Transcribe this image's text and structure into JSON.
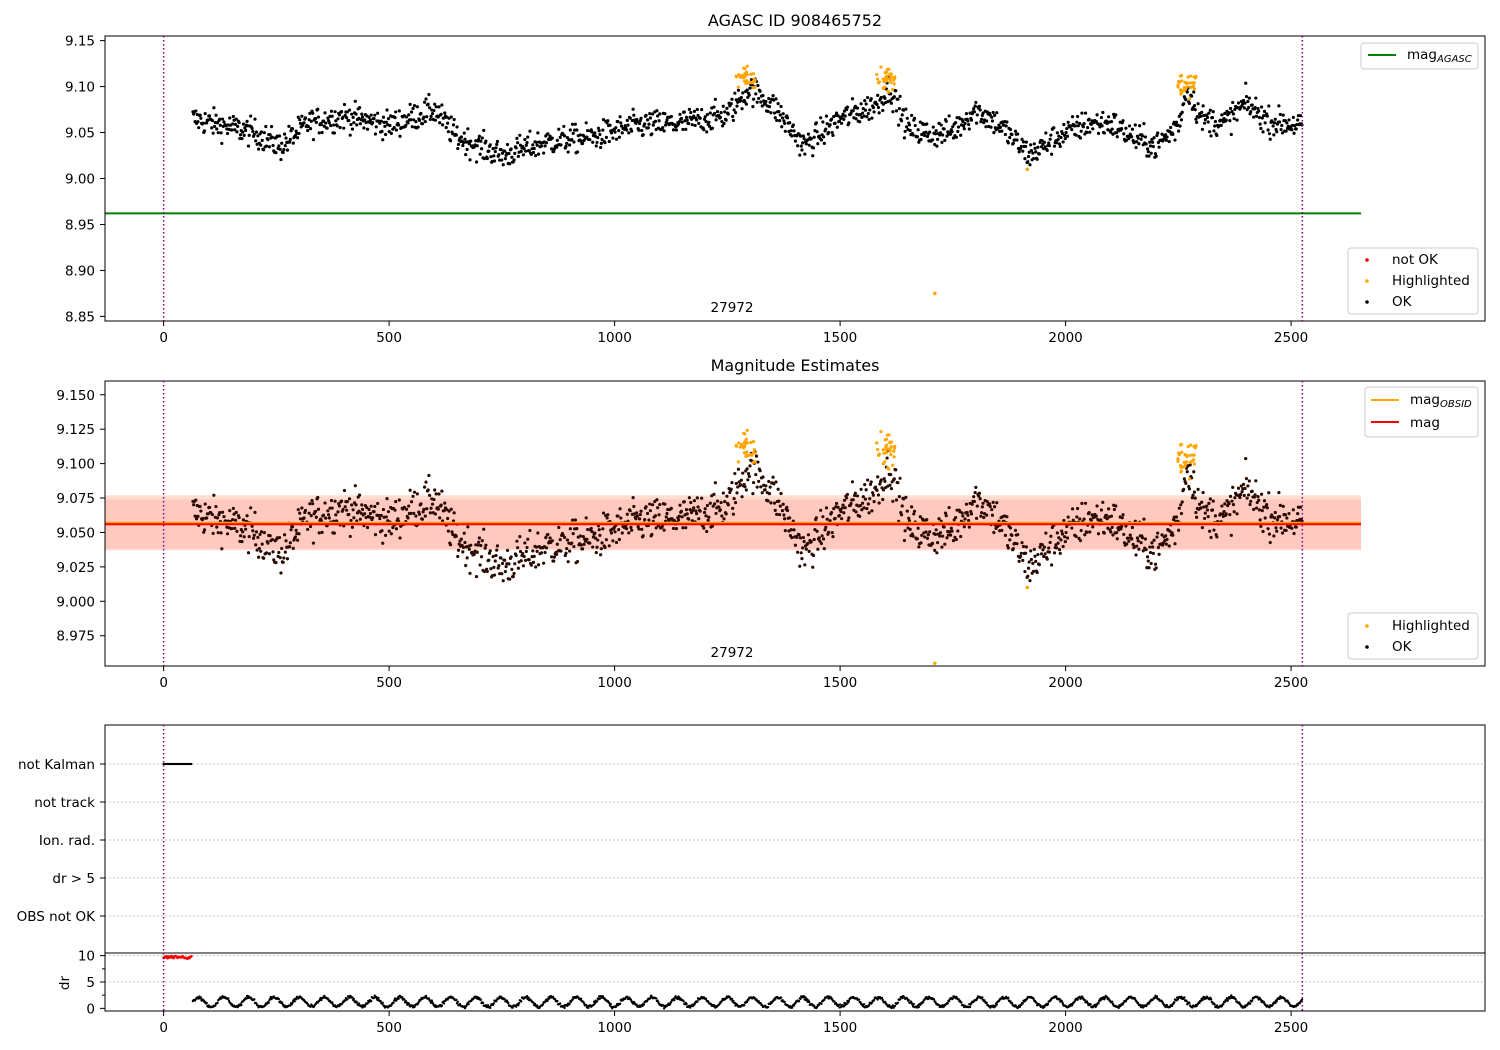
{
  "chart_data": [
    {
      "type": "scatter",
      "title": "AGASC ID 908465752",
      "xlim": [
        -130,
        2930
      ],
      "ylim": [
        8.845,
        9.155
      ],
      "xticks": [
        0,
        500,
        1000,
        1500,
        2000,
        2500
      ],
      "yticks": [
        8.85,
        8.9,
        8.95,
        9.0,
        9.05,
        9.1,
        9.15
      ],
      "ytick_labels": [
        "8.85",
        "8.90",
        "8.95",
        "9.00",
        "9.05",
        "9.10",
        "9.15"
      ],
      "annotation": {
        "text": "27972",
        "x": 1260
      },
      "vlines": [
        0,
        2525
      ],
      "hline": {
        "name": "mag_AGASC",
        "y": 8.962,
        "x_range": [
          -130,
          2655
        ],
        "color": "#008000"
      },
      "upper_legend": [
        {
          "label": "mag",
          "sub": "AGASC",
          "color": "#008000"
        }
      ],
      "lower_legend": [
        {
          "label": "not OK",
          "color": "#ff0000"
        },
        {
          "label": "Highlighted",
          "color": "#ffa500"
        },
        {
          "label": "OK",
          "color": "#000000"
        }
      ],
      "series": {
        "ok_x_range": [
          65,
          2525
        ],
        "ok_profile": [
          [
            65,
            9.065
          ],
          [
            200,
            9.05
          ],
          [
            260,
            9.035
          ],
          [
            320,
            9.06
          ],
          [
            400,
            9.068
          ],
          [
            500,
            9.058
          ],
          [
            600,
            9.075
          ],
          [
            650,
            9.045
          ],
          [
            750,
            9.025
          ],
          [
            850,
            9.04
          ],
          [
            950,
            9.045
          ],
          [
            1050,
            9.058
          ],
          [
            1150,
            9.06
          ],
          [
            1250,
            9.07
          ],
          [
            1300,
            9.098
          ],
          [
            1350,
            9.08
          ],
          [
            1420,
            9.035
          ],
          [
            1500,
            9.065
          ],
          [
            1580,
            9.08
          ],
          [
            1610,
            9.098
          ],
          [
            1650,
            9.055
          ],
          [
            1700,
            9.048
          ],
          [
            1750,
            9.052
          ],
          [
            1800,
            9.075
          ],
          [
            1850,
            9.06
          ],
          [
            1920,
            9.025
          ],
          [
            1980,
            9.045
          ],
          [
            2050,
            9.06
          ],
          [
            2100,
            9.06
          ],
          [
            2150,
            9.045
          ],
          [
            2200,
            9.035
          ],
          [
            2250,
            9.058
          ],
          [
            2270,
            9.1
          ],
          [
            2300,
            9.065
          ],
          [
            2350,
            9.06
          ],
          [
            2400,
            9.082
          ],
          [
            2450,
            9.062
          ],
          [
            2525,
            9.058
          ]
        ],
        "highlighted_clusters": [
          [
            1290,
            9.11
          ],
          [
            1600,
            9.108
          ],
          [
            2270,
            9.105
          ]
        ],
        "outliers": [
          {
            "x": 1710,
            "y": 8.875,
            "color": "#ffa500"
          },
          {
            "x": 1915,
            "y": 9.01,
            "color": "#ffa500"
          }
        ]
      }
    },
    {
      "type": "scatter",
      "title": "Magnitude Estimates",
      "xlim": [
        -130,
        2930
      ],
      "ylim": [
        8.953,
        9.16
      ],
      "xticks": [
        0,
        500,
        1000,
        1500,
        2000,
        2500
      ],
      "yticks": [
        8.975,
        9.0,
        9.025,
        9.05,
        9.075,
        9.1,
        9.125,
        9.15
      ],
      "ytick_labels": [
        "8.975",
        "9.000",
        "9.025",
        "9.050",
        "9.075",
        "9.100",
        "9.125",
        "9.150"
      ],
      "annotation": {
        "text": "27972",
        "x": 1260
      },
      "vlines": [
        0,
        2525
      ],
      "bands": [
        {
          "y": [
            9.038,
            9.074
          ],
          "x_range": [
            -130,
            2655
          ],
          "color": "#ffc0cb",
          "opacity": 0.5
        },
        {
          "y": [
            9.037,
            9.077
          ],
          "x_range": [
            -130,
            2655
          ],
          "color": "#ffa07a",
          "opacity": 0.35
        }
      ],
      "hlines": [
        {
          "name": "mag_OBSID",
          "y": 9.057,
          "x_range": [
            -130,
            2655
          ],
          "color": "#ffa500"
        },
        {
          "name": "mag",
          "y": 9.056,
          "x_range": [
            -130,
            2655
          ],
          "color": "#ff0000"
        }
      ],
      "upper_legend": [
        {
          "label": "mag",
          "sub": "OBSID",
          "color": "#ffa500"
        },
        {
          "label": "mag",
          "sub": "",
          "color": "#ff0000"
        }
      ],
      "lower_legend": [
        {
          "label": "Highlighted",
          "color": "#ffa500"
        },
        {
          "label": "OK",
          "color": "#000000"
        }
      ],
      "outliers": [
        {
          "x": 1710,
          "y": 8.955,
          "color": "#ffa500"
        },
        {
          "x": 1915,
          "y": 9.01,
          "color": "#ffa500"
        }
      ]
    },
    {
      "type": "scatter",
      "categories": [
        "not Kalman",
        "not track",
        "Ion. rad.",
        "dr > 5",
        "OBS not OK"
      ],
      "xlim": [
        -130,
        2930
      ],
      "vlines": [
        0,
        2525
      ],
      "flag_not_kalman_x_range": [
        0,
        62
      ]
    },
    {
      "type": "scatter",
      "ylabel": "dr",
      "xlim": [
        -130,
        2930
      ],
      "ylim": [
        -0.5,
        10.5
      ],
      "xticks": [
        0,
        500,
        1000,
        1500,
        2000,
        2500
      ],
      "yticks": [
        0,
        5,
        10
      ],
      "ytick_labels": [
        "0",
        "5",
        "10"
      ],
      "vlines": [
        0,
        2525
      ],
      "not_ok": {
        "x_range": [
          0,
          62
        ],
        "y": 9.7,
        "color": "#ff0000"
      },
      "ok": {
        "x_range": [
          65,
          2525
        ],
        "y_range": [
          0,
          2.5
        ],
        "color": "#000000"
      }
    }
  ]
}
